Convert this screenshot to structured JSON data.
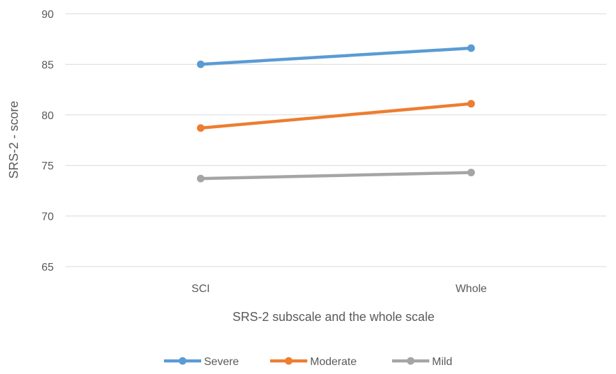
{
  "chart_data": {
    "type": "line",
    "title": "",
    "xlabel": "SRS-2 subscale and the whole scale",
    "ylabel": "SRS-2 - score",
    "categories": [
      "SCI",
      "Whole"
    ],
    "ylim": [
      65,
      90
    ],
    "yticks": [
      65,
      70,
      75,
      80,
      85,
      90
    ],
    "grid": true,
    "legend_position": "bottom",
    "series": [
      {
        "name": "Severe",
        "values": [
          85.0,
          86.6
        ],
        "color": "#5B9BD5"
      },
      {
        "name": "Moderate",
        "values": [
          78.7,
          81.1
        ],
        "color": "#ED7D31"
      },
      {
        "name": "Mild",
        "values": [
          73.7,
          74.3
        ],
        "color": "#A5A5A5"
      }
    ]
  }
}
